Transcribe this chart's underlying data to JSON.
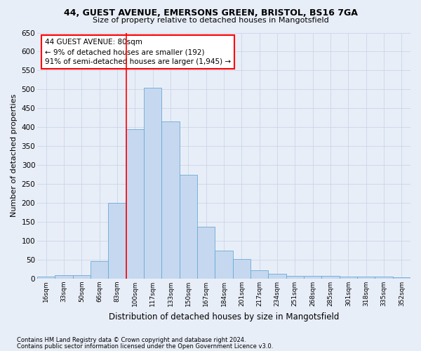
{
  "title1": "44, GUEST AVENUE, EMERSONS GREEN, BRISTOL, BS16 7GA",
  "title2": "Size of property relative to detached houses in Mangotsfield",
  "xlabel": "Distribution of detached houses by size in Mangotsfield",
  "ylabel": "Number of detached properties",
  "categories": [
    "16sqm",
    "33sqm",
    "50sqm",
    "66sqm",
    "83sqm",
    "100sqm",
    "117sqm",
    "133sqm",
    "150sqm",
    "167sqm",
    "184sqm",
    "201sqm",
    "217sqm",
    "234sqm",
    "251sqm",
    "268sqm",
    "285sqm",
    "301sqm",
    "318sqm",
    "335sqm",
    "352sqm"
  ],
  "values": [
    5,
    10,
    10,
    47,
    200,
    395,
    505,
    415,
    275,
    138,
    75,
    52,
    22,
    13,
    8,
    8,
    7,
    5,
    5,
    5,
    4
  ],
  "bar_color": "#c5d8f0",
  "bar_edge_color": "#6aaad4",
  "vline_x": 4.5,
  "annotation_line1": "44 GUEST AVENUE: 80sqm",
  "annotation_line2": "← 9% of detached houses are smaller (192)",
  "annotation_line3": "91% of semi-detached houses are larger (1,945) →",
  "annotation_box_color": "white",
  "annotation_box_edge_color": "red",
  "ylim": [
    0,
    650
  ],
  "yticks": [
    0,
    50,
    100,
    150,
    200,
    250,
    300,
    350,
    400,
    450,
    500,
    550,
    600,
    650
  ],
  "grid_color": "#ccd5e8",
  "bg_color": "#e8eef8",
  "title1_fontsize": 9.0,
  "title2_fontsize": 8.0,
  "footer1": "Contains HM Land Registry data © Crown copyright and database right 2024.",
  "footer2": "Contains public sector information licensed under the Open Government Licence v3.0."
}
